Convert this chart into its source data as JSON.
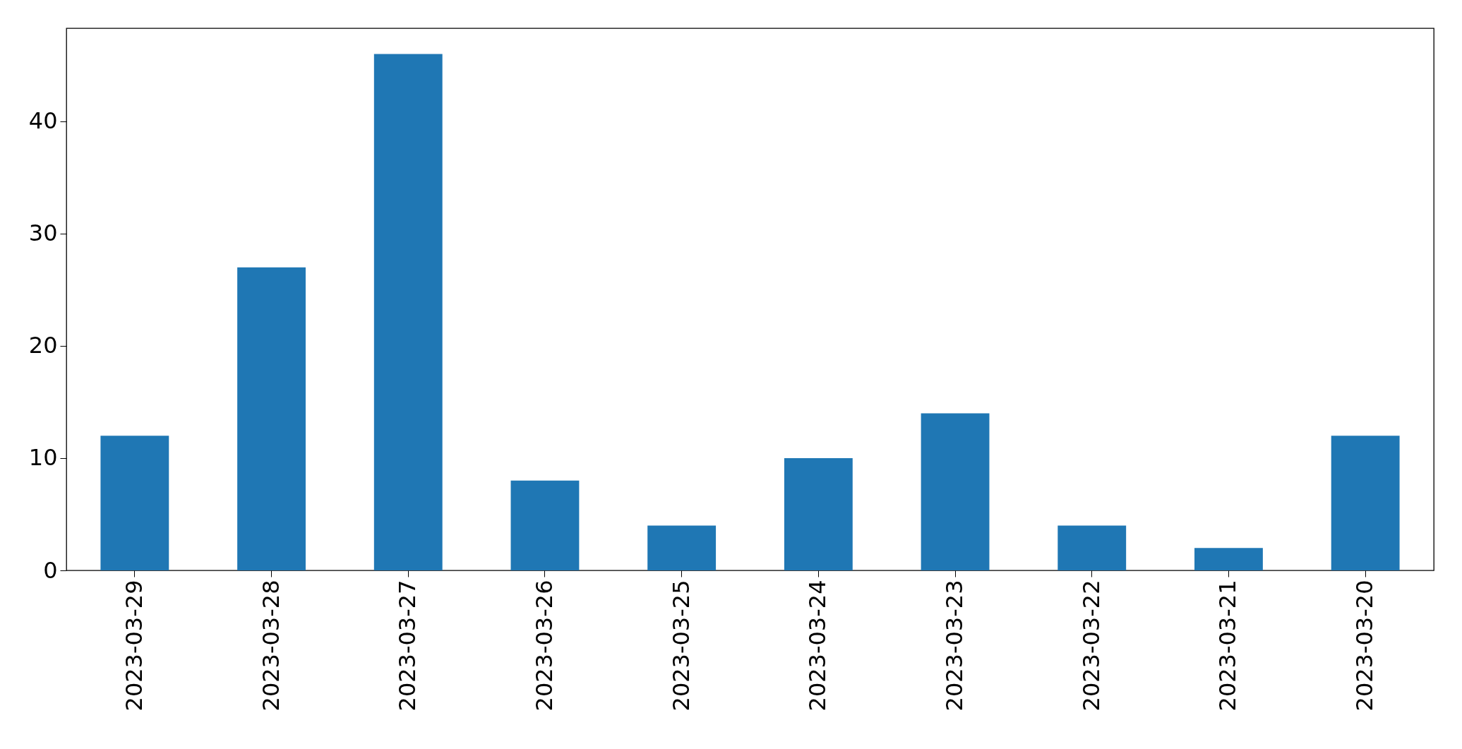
{
  "chart_data": {
    "type": "bar",
    "categories": [
      "2023-03-29",
      "2023-03-28",
      "2023-03-27",
      "2023-03-26",
      "2023-03-25",
      "2023-03-24",
      "2023-03-23",
      "2023-03-22",
      "2023-03-21",
      "2023-03-20"
    ],
    "values": [
      12,
      27,
      46,
      8,
      4,
      10,
      14,
      4,
      2,
      12
    ],
    "color": "#1f77b4",
    "ylim": [
      0,
      48.3
    ],
    "yticks": [
      0,
      10,
      20,
      30,
      40
    ],
    "grid": false
  }
}
